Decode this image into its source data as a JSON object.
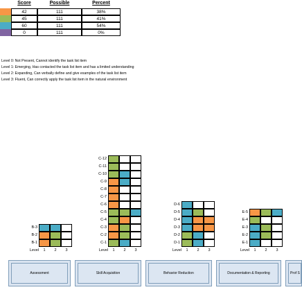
{
  "colors": {
    "orange": "#f79646",
    "green": "#9bbb59",
    "blue": "#4bacc6",
    "purple": "#8064a2",
    "white": "#ffffff",
    "card_fill": "#dbe5f1",
    "card_border": "#7f9db9"
  },
  "summary_table": {
    "headers": [
      "Score",
      "Possible",
      "Percent"
    ],
    "rows": [
      {
        "color": "orange",
        "score": "42",
        "possible": "111",
        "percent": "38%"
      },
      {
        "color": "green",
        "score": "45",
        "possible": "111",
        "percent": "41%"
      },
      {
        "color": "blue",
        "score": "60",
        "possible": "111",
        "percent": "54%"
      },
      {
        "color": "purple",
        "score": "0",
        "possible": "111",
        "percent": "0%"
      }
    ]
  },
  "level_legend": [
    "Level 0: Not Present, Cannot identify the task list item",
    "Level 1: Emerging, Has contacted the task list item and has a limited understanding",
    "Level 2: Expanding, Can verbally define and give examples of the task list item",
    "Level 3: Fluent, Can correctly apply the task list item in the natural environment"
  ],
  "axis": {
    "level_label": "Level",
    "levels": [
      "1",
      "2",
      "3"
    ]
  },
  "grids": [
    {
      "id": "assessment",
      "rows": [
        {
          "label": "B-3",
          "cells": [
            "blue",
            "blue",
            "white"
          ]
        },
        {
          "label": "B-2",
          "cells": [
            "orange",
            "green",
            "white"
          ]
        },
        {
          "label": "B-1",
          "cells": [
            "orange",
            "green",
            "white"
          ]
        }
      ]
    },
    {
      "id": "skill",
      "rows": [
        {
          "label": "C-12",
          "cells": [
            "green",
            "white",
            "white"
          ]
        },
        {
          "label": "C-11",
          "cells": [
            "green",
            "white",
            "white"
          ]
        },
        {
          "label": "C-10",
          "cells": [
            "green",
            "blue",
            "white"
          ]
        },
        {
          "label": "C-9",
          "cells": [
            "orange",
            "blue",
            "white"
          ]
        },
        {
          "label": "C-8",
          "cells": [
            "orange",
            "white",
            "white"
          ]
        },
        {
          "label": "C-7",
          "cells": [
            "orange",
            "white",
            "white"
          ]
        },
        {
          "label": "C-6",
          "cells": [
            "orange",
            "white",
            "white"
          ]
        },
        {
          "label": "C-5",
          "cells": [
            "green",
            "green",
            "blue"
          ]
        },
        {
          "label": "C-4",
          "cells": [
            "green",
            "orange",
            "white"
          ]
        },
        {
          "label": "C-3",
          "cells": [
            "orange",
            "green",
            "white"
          ]
        },
        {
          "label": "C-2",
          "cells": [
            "orange",
            "green",
            "white"
          ]
        },
        {
          "label": "C-1",
          "cells": [
            "green",
            "blue",
            "white"
          ]
        }
      ]
    },
    {
      "id": "behavior",
      "rows": [
        {
          "label": "D-6",
          "cells": [
            "blue",
            "white",
            "white"
          ]
        },
        {
          "label": "D-5",
          "cells": [
            "blue",
            "green",
            "white"
          ]
        },
        {
          "label": "D-4",
          "cells": [
            "blue",
            "orange",
            "orange"
          ]
        },
        {
          "label": "D-3",
          "cells": [
            "blue",
            "orange",
            "orange"
          ]
        },
        {
          "label": "D-2",
          "cells": [
            "green",
            "blue",
            "white"
          ]
        },
        {
          "label": "D-1",
          "cells": [
            "green",
            "blue",
            "white"
          ]
        }
      ]
    },
    {
      "id": "documentation",
      "rows": [
        {
          "label": "E-5",
          "cells": [
            "orange",
            "green",
            "blue"
          ]
        },
        {
          "label": "E-4",
          "cells": [
            "green",
            "white",
            "white"
          ]
        },
        {
          "label": "E-3",
          "cells": [
            "blue",
            "green",
            "white"
          ]
        },
        {
          "label": "E-2",
          "cells": [
            "blue",
            "green",
            "white"
          ]
        },
        {
          "label": "E-1",
          "cells": [
            "blue",
            "white",
            "white"
          ]
        }
      ]
    }
  ],
  "buttons": [
    {
      "label": "Assessment"
    },
    {
      "label": "Skill Acquisition"
    },
    {
      "label": "Behavior Reduction"
    },
    {
      "label": "Documentation & Reporting"
    },
    {
      "label": "Prof S"
    }
  ]
}
